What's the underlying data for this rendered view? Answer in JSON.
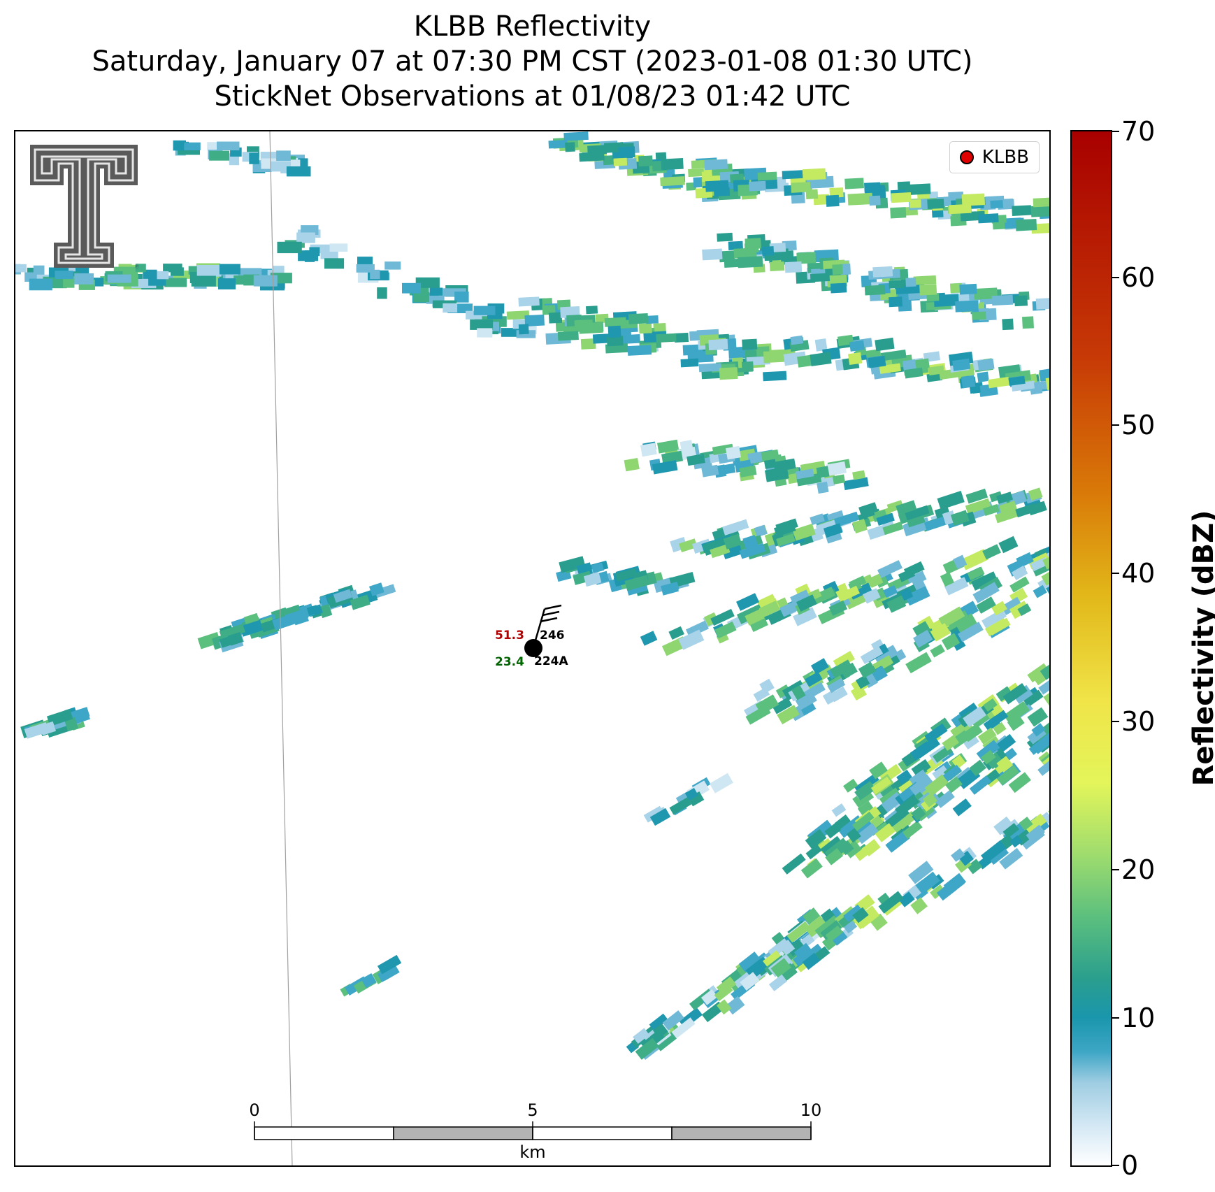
{
  "title": {
    "line1": "KLBB Reflectivity",
    "line2": "Saturday, January 07 at 07:30 PM CST (2023-01-08 01:30 UTC)",
    "line3": "StickNet Observations at 01/08/23 01:42 UTC"
  },
  "legend": {
    "label": "KLBB",
    "marker_color": "#e00000"
  },
  "station": {
    "temperature": "51.3",
    "temperature_color": "#b00000",
    "dewpoint": "23.4",
    "dewpoint_color": "#006400",
    "pressure": "246",
    "id": "224A"
  },
  "scale_bar": {
    "ticks": [
      "0",
      "5",
      "10"
    ],
    "unit": "km"
  },
  "colorbar": {
    "title": "Reflectivity (dBZ)",
    "ticks": [
      "0",
      "10",
      "20",
      "30",
      "40",
      "50",
      "60",
      "70"
    ],
    "min": 0,
    "max": 70
  },
  "logo": {
    "icon": "texas-tech-double-t-icon"
  }
}
